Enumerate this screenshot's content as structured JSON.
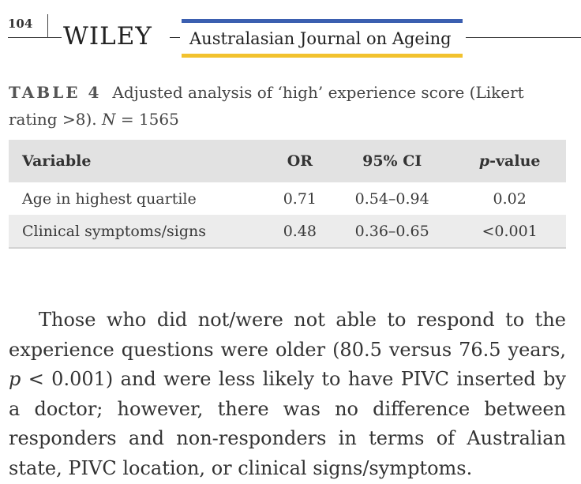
{
  "header": {
    "page_number": "104",
    "publisher": "WILEY",
    "journal": "Australasian Journal on Ageing",
    "colors": {
      "band_top": "#3b5fb0",
      "band_bottom": "#f2c22e"
    }
  },
  "table": {
    "label": "TABLE 4",
    "caption_text": "Adjusted analysis of ‘high’ experience score (Likert rating >8). ",
    "caption_n_symbol": "N",
    "caption_n_value": " = 1565",
    "columns": {
      "variable": "Variable",
      "or": "OR",
      "ci": "95% CI",
      "p_prefix": "p",
      "p_suffix": "-value"
    },
    "rows": [
      {
        "variable": "Age in highest quartile",
        "or": "0.71",
        "ci": "0.54–0.94",
        "p": "0.02"
      },
      {
        "variable": "Clinical symptoms/signs",
        "or": "0.48",
        "ci": "0.36–0.65",
        "p": "<0.001"
      }
    ]
  },
  "body": {
    "part1": "Those who did not/were not able to respond to the experience questions were older (80.5 versus 76.5 years, ",
    "p_symbol": "p",
    "part2": " < 0.001) and were less likely to have PIVC inserted by a doctor; however, there was no difference between responders and non-responders in terms of Australian state, PIVC location, or clinical signs/symptoms."
  }
}
